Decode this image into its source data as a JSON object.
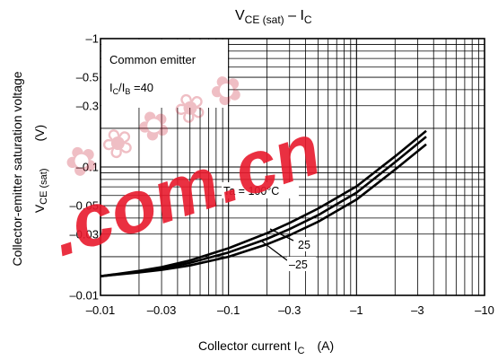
{
  "chart_data": {
    "type": "line",
    "title": {
      "main": "V",
      "main_sub": "CE (sat)",
      "dash": " – I",
      "dash_sub": "C"
    },
    "xlabel": {
      "text": "Collector current   I",
      "sub": "C",
      "unit": "(A)"
    },
    "ylabel": {
      "line1": "Collector-emitter saturation voltage",
      "line2_main": "V",
      "line2_sub": "CE (sat)",
      "line2_unit": "(V)"
    },
    "x_scale": "log",
    "y_scale": "log",
    "xlim": [
      0.01,
      10
    ],
    "ylim": [
      0.01,
      1
    ],
    "x_ticks": [
      {
        "v": 0.01,
        "label": "–0.01"
      },
      {
        "v": 0.03,
        "label": "–0.03"
      },
      {
        "v": 0.1,
        "label": "–0.1"
      },
      {
        "v": 0.3,
        "label": "–0.3"
      },
      {
        "v": 1,
        "label": "–1"
      },
      {
        "v": 3,
        "label": "–3"
      },
      {
        "v": 10,
        "label": "–10"
      }
    ],
    "y_ticks": [
      {
        "v": 1,
        "label": "–1"
      },
      {
        "v": 0.5,
        "label": "–0.5"
      },
      {
        "v": 0.3,
        "label": "–0.3"
      },
      {
        "v": 0.1,
        "label": "–0.1"
      },
      {
        "v": 0.05,
        "label": "–0.05"
      },
      {
        "v": 0.03,
        "label": "–0.03"
      },
      {
        "v": 0.01,
        "label": "–0.01"
      }
    ],
    "grid": true,
    "annotations": {
      "common_emitter": "Common emitter",
      "ic_ib": {
        "main1": "I",
        "sub1": "C",
        "slash": "/I",
        "sub2": "B",
        "value": " =40"
      },
      "ta": "Ta = 100°C"
    },
    "series": [
      {
        "name": "100",
        "x": [
          0.01,
          0.02,
          0.03,
          0.05,
          0.1,
          0.2,
          0.3,
          0.5,
          1,
          2,
          3.5
        ],
        "y": [
          0.0141,
          0.0155,
          0.0166,
          0.0187,
          0.0233,
          0.0305,
          0.0367,
          0.0474,
          0.0706,
          0.121,
          0.191
        ]
      },
      {
        "name": "25",
        "x": [
          0.01,
          0.02,
          0.03,
          0.05,
          0.1,
          0.2,
          0.3,
          0.5,
          1,
          2,
          3.5
        ],
        "y": [
          0.0141,
          0.0153,
          0.0162,
          0.0179,
          0.0216,
          0.0276,
          0.0328,
          0.0421,
          0.0631,
          0.109,
          0.172
        ]
      },
      {
        "name": "–25",
        "x": [
          0.01,
          0.02,
          0.03,
          0.05,
          0.1,
          0.2,
          0.3,
          0.5,
          1,
          2,
          3.5
        ],
        "y": [
          0.0141,
          0.0151,
          0.0158,
          0.0171,
          0.02,
          0.025,
          0.0294,
          0.0374,
          0.0557,
          0.0955,
          0.15
        ]
      }
    ],
    "series_labels": [
      "25",
      "–25"
    ]
  },
  "watermark": {
    "text": ".com.cn",
    "color": "#e8192c"
  }
}
